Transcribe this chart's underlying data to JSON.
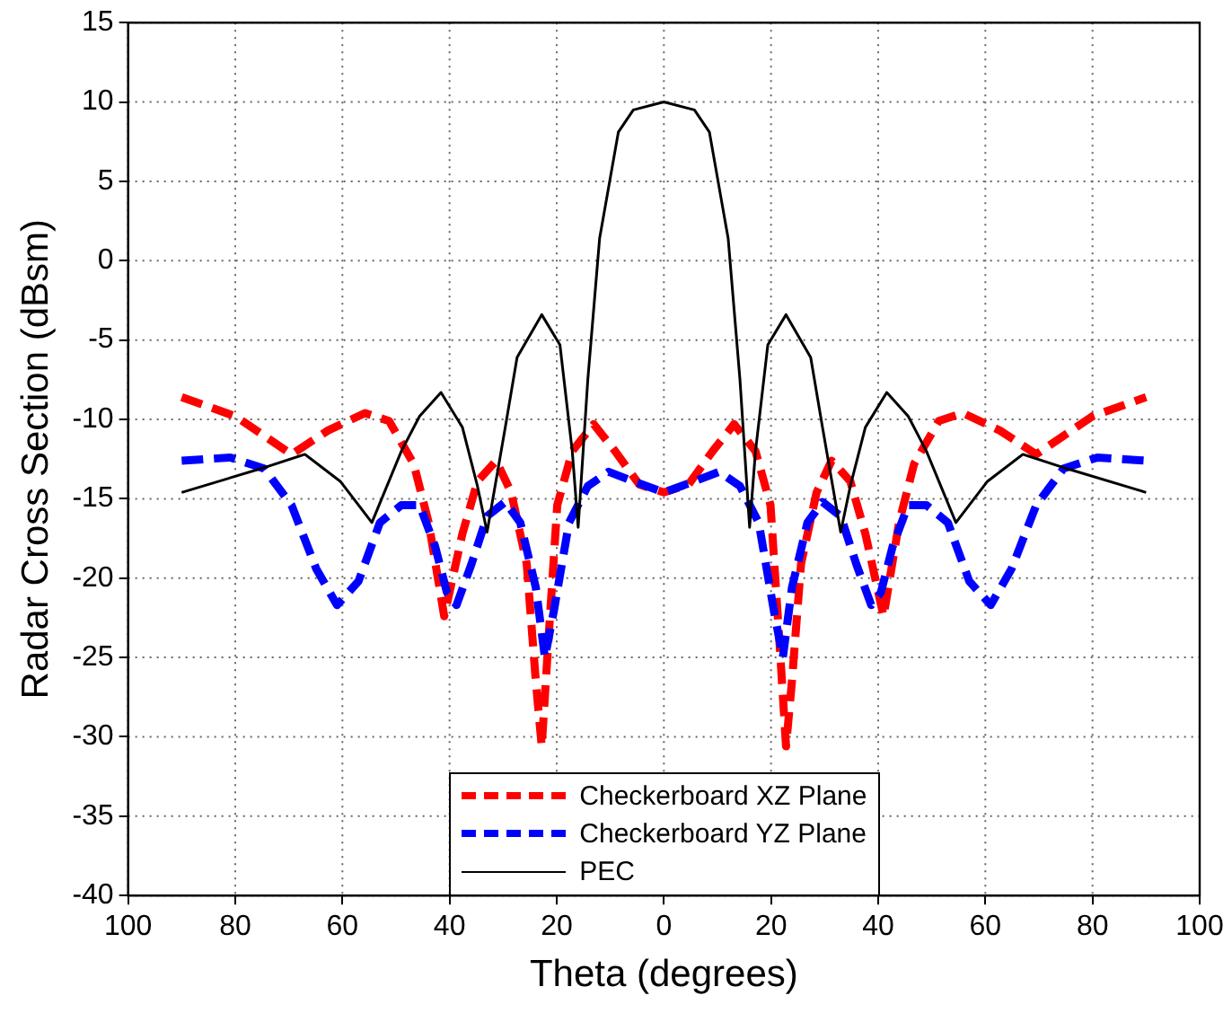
{
  "chart_data": {
    "type": "line",
    "xlabel": "Theta (degrees)",
    "ylabel": "Radar Cross Section (dBsm)",
    "xlim": [
      -100,
      100
    ],
    "xticks": [
      {
        "value": -100,
        "label": "100"
      },
      {
        "value": -80,
        "label": "80"
      },
      {
        "value": -60,
        "label": "60"
      },
      {
        "value": -40,
        "label": "40"
      },
      {
        "value": -20,
        "label": "20"
      },
      0,
      20,
      40,
      60,
      80,
      100
    ],
    "ylim": [
      -40,
      15
    ],
    "yticks": [
      -40,
      -35,
      -30,
      -25,
      -20,
      -15,
      -10,
      -5,
      0,
      5,
      10,
      15
    ],
    "grid": true,
    "legend": "bottom",
    "marker": "none",
    "series": [
      {
        "name": "Checkerboard XZ Plane",
        "color": "#ff0000",
        "line_style": "dashed",
        "x": [
          -90,
          -80,
          -69.5,
          -62.7,
          -55.8,
          -51.3,
          -46.7,
          -43.9,
          -41,
          -37.6,
          -34.8,
          -31.3,
          -28.5,
          -25.6,
          -23.9,
          -22.8,
          -21.7,
          -19.9,
          -17.1,
          -13.1,
          -9.1,
          -4.6,
          0,
          4.6,
          9.1,
          13.1,
          17.1,
          19.9,
          21.7,
          22.8,
          23.9,
          25.6,
          28.5,
          31.3,
          34.8,
          37.6,
          41,
          43.9,
          46.7,
          51.3,
          55.8,
          62.7,
          69.5,
          80,
          90
        ],
        "values": [
          -8.6,
          -9.8,
          -12.2,
          -10.7,
          -9.6,
          -10.1,
          -12.8,
          -16.5,
          -22.4,
          -17.2,
          -13.9,
          -12.6,
          -14.6,
          -19.1,
          -26.5,
          -30.6,
          -24.7,
          -15.4,
          -12,
          -10.3,
          -12,
          -14.1,
          -14.6,
          -14.1,
          -12,
          -10.3,
          -12,
          -15.4,
          -24.7,
          -30.6,
          -26.5,
          -19.1,
          -14.6,
          -12.6,
          -13.9,
          -17.2,
          -22.4,
          -16.5,
          -12.8,
          -10.1,
          -9.6,
          -10.7,
          -12.2,
          -9.8,
          -8.6
        ]
      },
      {
        "name": "Checkerboard YZ Plane",
        "color": "#0000ff",
        "line_style": "dashed",
        "x": [
          -90,
          -80.9,
          -74.6,
          -69.5,
          -64.9,
          -61,
          -57,
          -53,
          -49,
          -45.6,
          -42.7,
          -40.5,
          -38.7,
          -35.9,
          -33,
          -29.6,
          -26.8,
          -23.9,
          -22.2,
          -20.5,
          -17.7,
          -14.2,
          -10.3,
          -5.7,
          0,
          5.7,
          10.3,
          14.2,
          17.7,
          20.5,
          22.2,
          23.9,
          26.8,
          29.6,
          33,
          35.9,
          38.7,
          40.5,
          42.7,
          45.6,
          49,
          53,
          57,
          61,
          64.9,
          69.5,
          74.6,
          80.9,
          90
        ],
        "values": [
          -12.6,
          -12.4,
          -13.1,
          -15.4,
          -19.4,
          -21.7,
          -20.2,
          -16.5,
          -15.4,
          -15.4,
          -18,
          -20.9,
          -21.7,
          -19.1,
          -16.1,
          -15.2,
          -16.5,
          -20.6,
          -25,
          -22,
          -16.5,
          -14.2,
          -13.3,
          -13.9,
          -14.6,
          -13.9,
          -13.3,
          -14.2,
          -16.5,
          -22,
          -25,
          -20.6,
          -16.5,
          -15.2,
          -16.1,
          -19.1,
          -21.7,
          -20.9,
          -18,
          -15.4,
          -15.4,
          -16.5,
          -20.2,
          -21.7,
          -19.4,
          -15.4,
          -13.1,
          -12.4,
          -12.6
        ]
      },
      {
        "name": "PEC",
        "color": "#000000",
        "line_style": "solid",
        "x": [
          -90,
          -75.2,
          -67,
          -60.4,
          -54.5,
          -49,
          -45.6,
          -41.6,
          -37.6,
          -34.8,
          -33,
          -29.6,
          -27.4,
          -22.8,
          -19.4,
          -17.1,
          -16,
          -14.2,
          -12,
          -8.5,
          -5.7,
          0,
          5.7,
          8.5,
          12,
          14.2,
          16,
          17.1,
          19.4,
          22.8,
          27.4,
          29.6,
          33,
          34.8,
          37.6,
          41.6,
          45.6,
          49,
          54.5,
          60.4,
          67,
          75.2,
          90
        ],
        "values": [
          -14.6,
          -13.1,
          -12.2,
          -13.9,
          -16.5,
          -12,
          -9.8,
          -8.3,
          -10.5,
          -14.2,
          -17.1,
          -10.5,
          -6.1,
          -3.4,
          -5.3,
          -12,
          -16.8,
          -7.5,
          1.4,
          8.1,
          9.5,
          10,
          9.5,
          8.1,
          1.4,
          -7.5,
          -16.8,
          -12,
          -5.3,
          -3.4,
          -6.1,
          -10.5,
          -17.1,
          -14.2,
          -10.5,
          -8.3,
          -9.8,
          -12,
          -16.5,
          -13.9,
          -12.2,
          -13.1,
          -14.6
        ]
      }
    ]
  }
}
